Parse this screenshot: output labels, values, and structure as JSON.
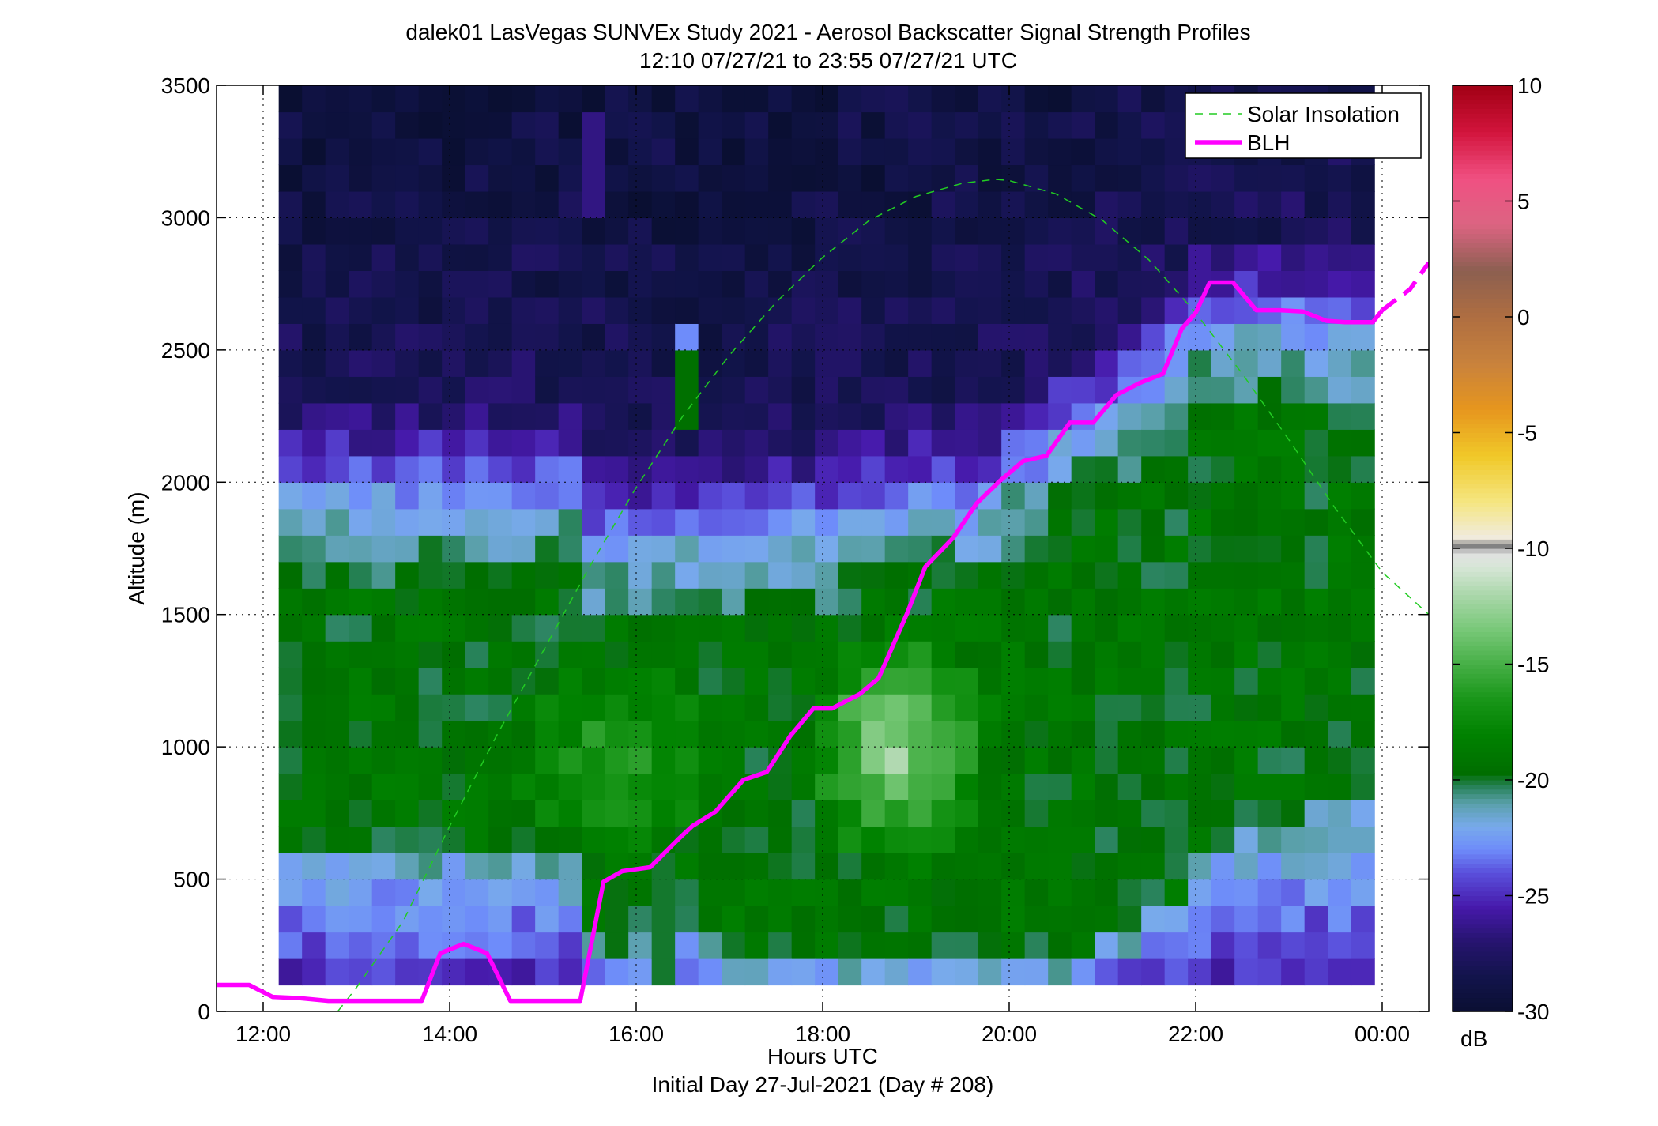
{
  "chart_data": {
    "type": "heatmap",
    "title": [
      "dalek01 LasVegas SUNVEx Study 2021 - Aerosol Backscatter Signal Strength Profiles",
      "12:10 07/27/21 to 23:55 07/27/21  UTC"
    ],
    "xlabel": "Hours UTC",
    "xlabel_sub": "Initial Day 27-Jul-2021 (Day # 208)",
    "ylabel": "Altitude (m)",
    "xlim": [
      11.5,
      24.5
    ],
    "ylim": [
      0,
      3500
    ],
    "x_ticks": [
      12,
      14,
      16,
      18,
      20,
      22,
      24
    ],
    "x_tick_labels": [
      "12:00",
      "14:00",
      "16:00",
      "18:00",
      "20:00",
      "22:00",
      "00:00"
    ],
    "y_ticks": [
      0,
      500,
      1000,
      1500,
      2000,
      2500,
      3000,
      3500
    ],
    "y_tick_labels": [
      "0",
      "500",
      "1000",
      "1500",
      "2000",
      "2500",
      "3000",
      "3500"
    ],
    "grid": "dotted",
    "colorbar": {
      "range": [
        -30,
        10
      ],
      "ticks": [
        -30,
        -25,
        -20,
        -15,
        -10,
        -5,
        0,
        5,
        10
      ],
      "tick_labels": [
        "-30",
        "-25",
        "-20",
        "-15",
        "-10",
        "-5",
        "0",
        "5",
        "10"
      ],
      "unit": "dB"
    },
    "heatmap": {
      "x_start": 12.1667,
      "x_end": 23.9167,
      "bin_minutes": 15,
      "y_start": 100,
      "y_end": 3500,
      "bin_m": 100,
      "note_values": "backscatter signal strength in dB"
    },
    "legend": {
      "placement": "top-right",
      "entries": [
        "Solar Insolation",
        "BLH"
      ]
    },
    "series": [
      {
        "name": "Solar Insolation",
        "style": "dashed",
        "color": "#22cc22",
        "x": [
          12.8,
          13.0,
          13.5,
          14.0,
          14.5,
          15.0,
          15.5,
          16.0,
          16.5,
          17.0,
          17.5,
          18.0,
          18.5,
          19.0,
          19.5,
          19.85,
          20.0,
          20.5,
          21.0,
          21.5,
          22.0,
          22.5,
          23.0,
          23.5,
          24.0,
          24.5
        ],
        "y": [
          0,
          90,
          340,
          700,
          1040,
          1360,
          1680,
          1980,
          2250,
          2480,
          2680,
          2850,
          2990,
          3080,
          3130,
          3145,
          3140,
          3090,
          2990,
          2840,
          2640,
          2410,
          2160,
          1900,
          1660,
          1500
        ]
      },
      {
        "name": "BLH",
        "style": "solid",
        "color": "#ff00ff",
        "x": [
          11.5,
          11.85,
          12.1,
          12.4,
          12.7,
          13.0,
          13.3,
          13.7,
          13.9,
          14.15,
          14.4,
          14.65,
          14.95,
          15.4,
          15.65,
          15.85,
          16.15,
          16.45,
          16.6,
          16.85,
          17.15,
          17.4,
          17.65,
          17.9,
          18.1,
          18.4,
          18.6,
          18.9,
          19.1,
          19.4,
          19.65,
          19.9,
          20.15,
          20.4,
          20.65,
          20.9,
          21.15,
          21.4,
          21.65,
          21.85,
          22.0,
          22.15,
          22.4,
          22.65,
          22.9,
          23.15,
          23.4,
          23.6,
          23.9,
          24.0,
          24.3,
          24.5
        ]
      }
    ]
  }
}
